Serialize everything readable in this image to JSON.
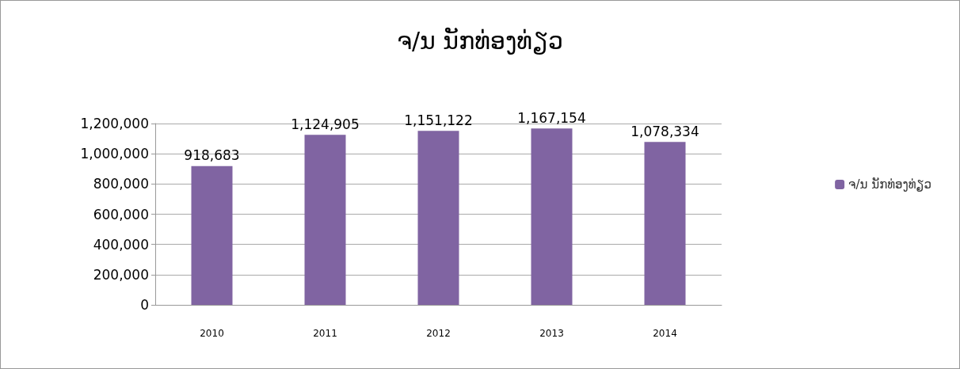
{
  "chart_data": {
    "type": "bar",
    "title": "ຈ/ນ ນັກທ່ອງທ່ຽວ",
    "categories": [
      "2010",
      "2011",
      "2012",
      "2013",
      "2014"
    ],
    "series": [
      {
        "name": "ຈ/ນ ນັກທ່ອງທ່ຽວ",
        "color": "#8064a2",
        "values": [
          918683,
          1124905,
          1151122,
          1167154,
          1078334
        ],
        "value_labels": [
          "918,683",
          "1,124,905",
          "1,151,122",
          "1,167,154",
          "1,078,334"
        ]
      }
    ],
    "ylim": [
      0,
      1200000
    ],
    "yticks": [
      0,
      {
        "value": 200000,
        "label": "200,000"
      },
      {
        "value": 400000,
        "label": "400,000"
      },
      {
        "value": 600000,
        "label": "600,000"
      },
      {
        "value": 800000,
        "label": "800,000"
      },
      {
        "value": 1000000,
        "label": "1,000,000"
      },
      {
        "value": 1200000,
        "label": "1,200,000"
      }
    ],
    "grid": "y",
    "legend": "right"
  }
}
